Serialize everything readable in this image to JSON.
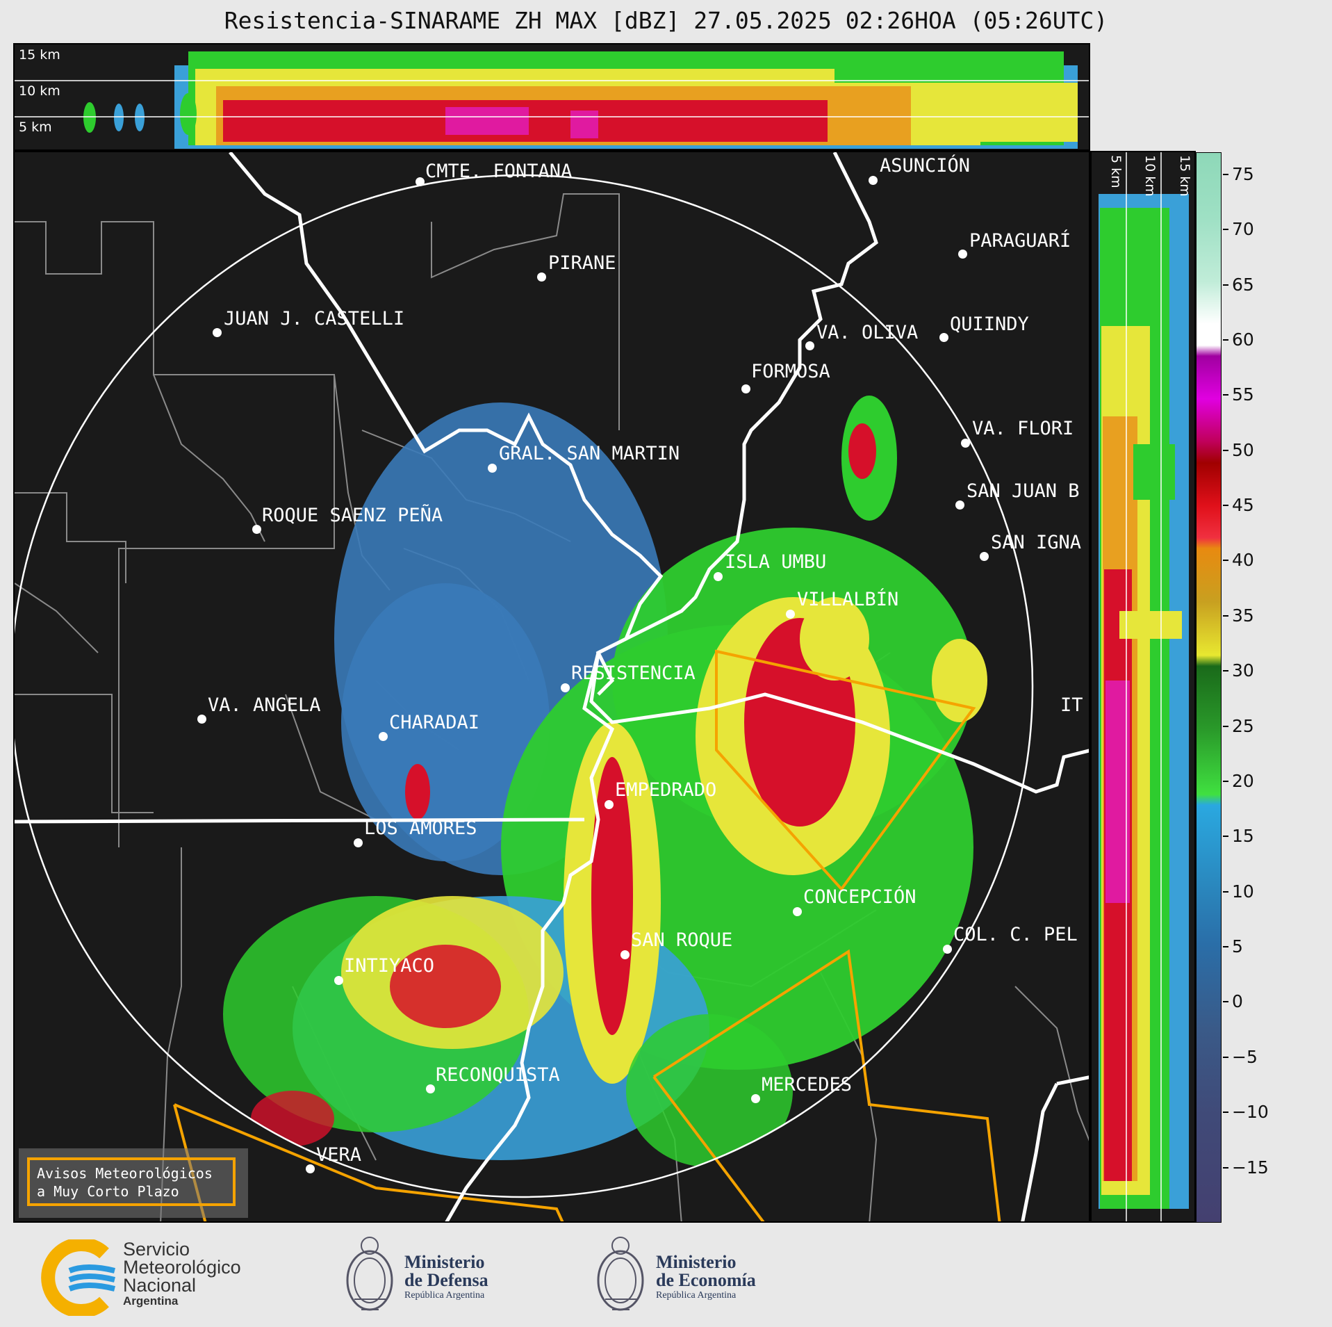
{
  "title": "Resistencia-SINARAME ZH MAX [dBZ] 27.05.2025 02:26HOA (05:26UTC)",
  "top_panel": {
    "height_labels": [
      "15 km",
      "10 km",
      "5 km"
    ]
  },
  "right_panel": {
    "height_labels": [
      "5 km",
      "10 km",
      "15 km"
    ]
  },
  "colorbar": {
    "ticks": [
      "75",
      "70",
      "65",
      "60",
      "55",
      "50",
      "45",
      "40",
      "35",
      "30",
      "25",
      "20",
      "15",
      "10",
      "5",
      "0",
      "−5",
      "−10",
      "−15"
    ],
    "range": [
      -20,
      77
    ],
    "unit": "dBZ"
  },
  "cities": [
    {
      "name": "CMTE. FONTANA"
    },
    {
      "name": "ASUNCIÓN"
    },
    {
      "name": "PARAGUARÍ"
    },
    {
      "name": "PIRANE"
    },
    {
      "name": "JUAN J. CASTELLI"
    },
    {
      "name": "VA. OLIVA"
    },
    {
      "name": "QUIINDY"
    },
    {
      "name": "FORMOSA"
    },
    {
      "name": "VA. FLORI"
    },
    {
      "name": "GRAL. SAN MARTIN"
    },
    {
      "name": "SAN JUAN B"
    },
    {
      "name": "ROQUE SAENZ PEÑA"
    },
    {
      "name": "SAN IGNA"
    },
    {
      "name": "ISLA UMBU"
    },
    {
      "name": "VILLALBÍN"
    },
    {
      "name": "RESISTENCIA"
    },
    {
      "name": "VA. ANGELA"
    },
    {
      "name": "CHARADAI"
    },
    {
      "name": "IT"
    },
    {
      "name": "EMPEDRADO"
    },
    {
      "name": "LOS AMORES"
    },
    {
      "name": "CONCEPCIÓN"
    },
    {
      "name": "SAN ROQUE"
    },
    {
      "name": "COL. C. PEL"
    },
    {
      "name": "INTIYACO"
    },
    {
      "name": "RECONQUISTA"
    },
    {
      "name": "MERCEDES"
    },
    {
      "name": "VERA"
    }
  ],
  "legend": {
    "line1": "Avisos Meteorológicos",
    "line2": "a Muy Corto Plazo"
  },
  "logos": {
    "smn": {
      "line1": "Servicio",
      "line2": "Meteorológico",
      "line3": "Nacional",
      "line4": "Argentina"
    },
    "defensa": {
      "line1": "Ministerio",
      "line2": "de Defensa",
      "line3": "República Argentina"
    },
    "economia": {
      "line1": "Ministerio",
      "line2": "de Economía",
      "line3": "República Argentina"
    }
  }
}
